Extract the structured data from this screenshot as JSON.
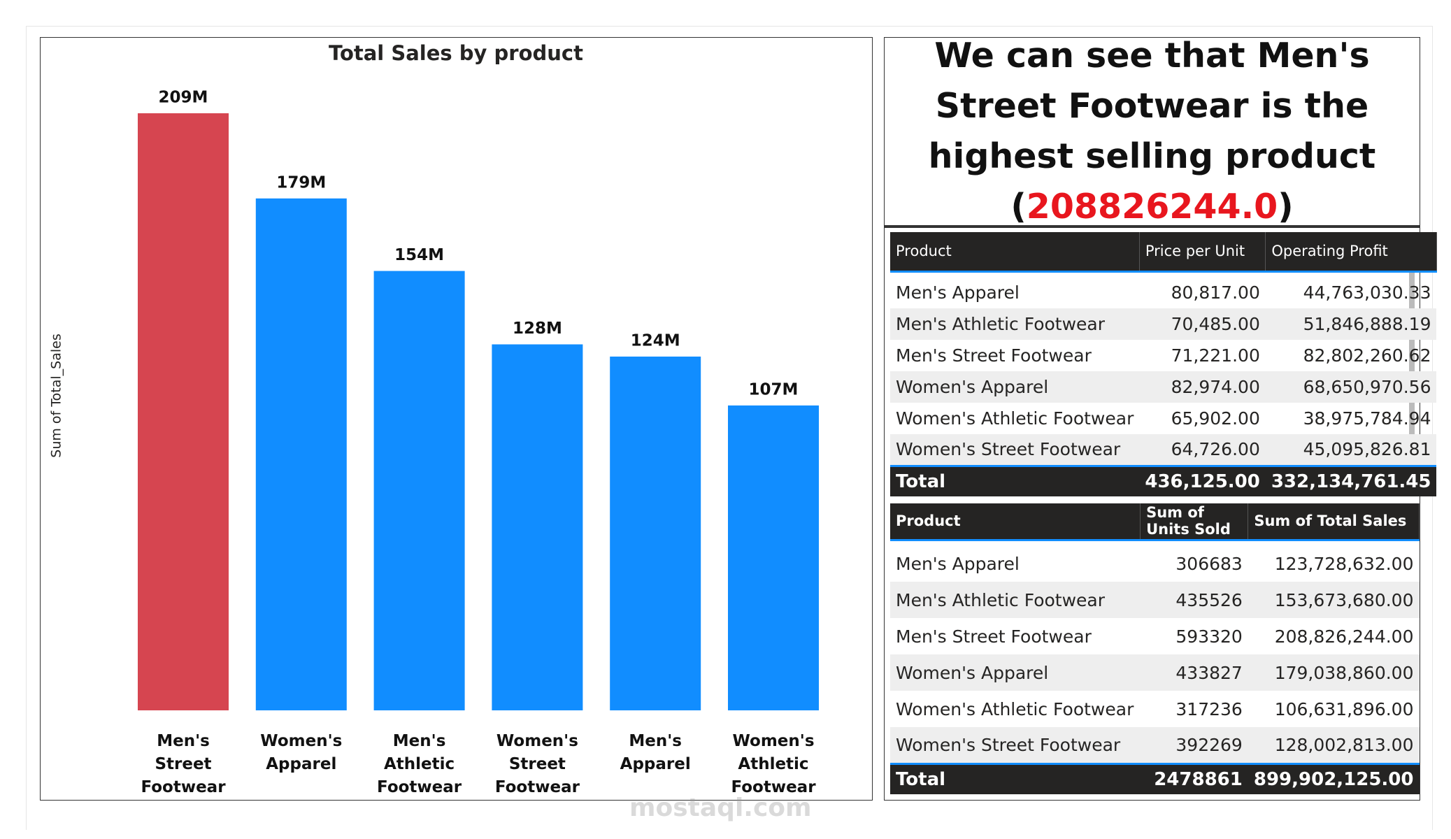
{
  "chart_data": {
    "type": "bar",
    "title": "Total Sales by product",
    "y_label": "Sum of Total_Sales",
    "categories": [
      "Men's Street Footwear",
      "Women's Apparel",
      "Men's Athletic Footwear",
      "Women's Street Footwear",
      "Men's Apparel",
      "Women's Athletic Footwear"
    ],
    "values": [
      208826244,
      179038860,
      153673680,
      128002813,
      123728632,
      106631896
    ],
    "value_labels": [
      "209M",
      "179M",
      "154M",
      "128M",
      "124M",
      "107M"
    ],
    "colors": [
      "#d64550",
      "#118dff",
      "#118dff",
      "#118dff",
      "#118dff",
      "#118dff"
    ]
  },
  "insight": {
    "before": "We can see that Men's Street Footwear is the highest selling product (",
    "highlight": "208826244.0",
    "after": ")"
  },
  "tables": [
    {
      "columns": [
        "Product",
        "Price per Unit",
        "Operating Profit"
      ],
      "rows": [
        [
          "Men's Apparel",
          "80,817.00",
          "44,763,030.33"
        ],
        [
          "Men's Athletic Footwear",
          "70,485.00",
          "51,846,888.19"
        ],
        [
          "Men's Street Footwear",
          "71,221.00",
          "82,802,260.62"
        ],
        [
          "Women's Apparel",
          "82,974.00",
          "68,650,970.56"
        ],
        [
          "Women's Athletic Footwear",
          "65,902.00",
          "38,975,784.94"
        ],
        [
          "Women's Street Footwear",
          "64,726.00",
          "45,095,826.81"
        ]
      ],
      "total": [
        "Total",
        "436,125.00",
        "332,134,761.45"
      ]
    },
    {
      "columns": [
        "Product",
        "Sum of Units Sold",
        "Sum of Total Sales"
      ],
      "rows": [
        [
          "Men's Apparel",
          "306683",
          "123,728,632.00"
        ],
        [
          "Men's Athletic Footwear",
          "435526",
          "153,673,680.00"
        ],
        [
          "Men's Street Footwear",
          "593320",
          "208,826,244.00"
        ],
        [
          "Women's Apparel",
          "433827",
          "179,038,860.00"
        ],
        [
          "Women's Athletic Footwear",
          "317236",
          "106,631,896.00"
        ],
        [
          "Women's Street Footwear",
          "392269",
          "128,002,813.00"
        ]
      ],
      "total": [
        "Total",
        "2478861",
        "899,902,125.00"
      ]
    }
  ],
  "watermark": "mostaql.com"
}
